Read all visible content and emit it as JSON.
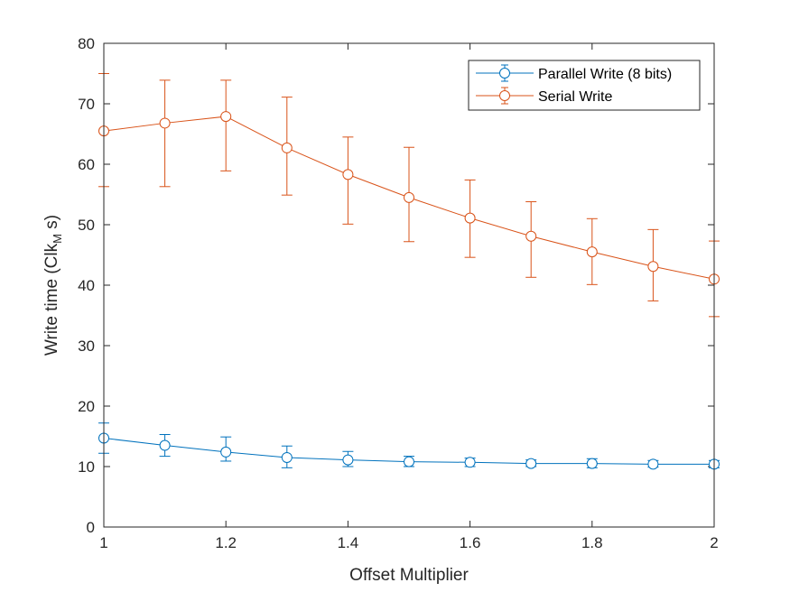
{
  "chart_data": {
    "type": "line",
    "xlabel": "Offset Multiplier",
    "ylabel": {
      "prefix": "Write time (Clk",
      "subscript": "M",
      "suffix": " s)"
    },
    "xlim": [
      1,
      2
    ],
    "ylim": [
      0,
      80
    ],
    "xticks": [
      "1",
      "1.2",
      "1.4",
      "1.6",
      "1.8",
      "2"
    ],
    "xtick_values": [
      1,
      1.2,
      1.4,
      1.6,
      1.8,
      2
    ],
    "yticks": [
      "0",
      "10",
      "20",
      "30",
      "40",
      "50",
      "60",
      "70",
      "80"
    ],
    "ytick_values": [
      0,
      10,
      20,
      30,
      40,
      50,
      60,
      70,
      80
    ],
    "grid": false,
    "legend_position": "top-right",
    "marker": "circle",
    "error_bars": true,
    "x": [
      1.0,
      1.1,
      1.2,
      1.3,
      1.4,
      1.5,
      1.6,
      1.7,
      1.8,
      1.9,
      2.0
    ],
    "series": [
      {
        "name": "Parallel Write (8 bits)",
        "color": "#0072BD",
        "values": [
          14.7,
          13.5,
          12.4,
          11.5,
          11.1,
          10.8,
          10.7,
          10.5,
          10.5,
          10.4,
          10.4
        ],
        "err_low": [
          12.2,
          11.7,
          10.9,
          9.8,
          10.0,
          10.0,
          10.0,
          10.0,
          9.8,
          9.9,
          9.8
        ],
        "err_high": [
          17.2,
          15.3,
          14.9,
          13.4,
          12.5,
          11.7,
          11.4,
          11.1,
          11.3,
          11.0,
          11.0
        ]
      },
      {
        "name": "Serial Write",
        "color": "#D95319",
        "values": [
          65.5,
          66.8,
          67.9,
          62.7,
          58.3,
          54.5,
          51.1,
          48.1,
          45.5,
          43.1,
          41.0
        ],
        "err_low": [
          56.3,
          56.3,
          58.9,
          54.9,
          50.1,
          47.2,
          44.6,
          41.3,
          40.1,
          37.4,
          34.8
        ],
        "err_high": [
          75.0,
          73.9,
          73.9,
          71.1,
          64.5,
          62.8,
          57.4,
          53.8,
          51.0,
          49.2,
          47.3
        ]
      }
    ]
  }
}
